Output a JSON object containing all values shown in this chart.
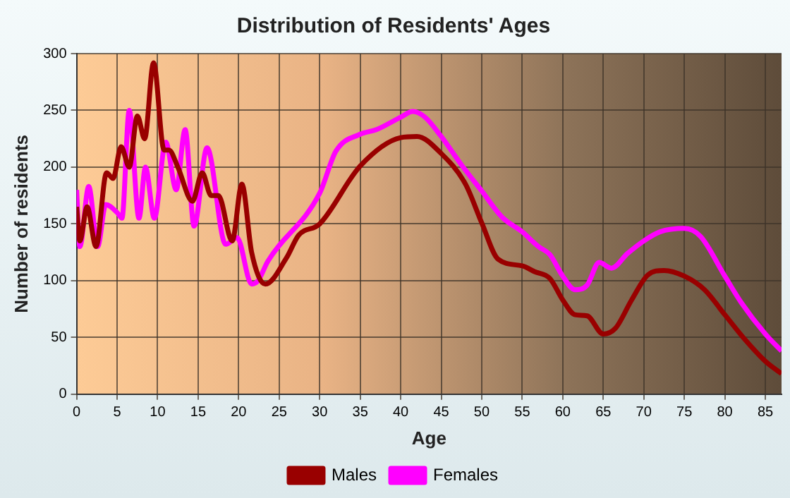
{
  "chart_data": {
    "type": "line",
    "title": "Distribution of Residents' Ages",
    "xlabel": "Age",
    "ylabel": "Number of residents",
    "xlim": [
      0,
      87
    ],
    "xticks": [
      0,
      5,
      10,
      15,
      20,
      25,
      30,
      35,
      40,
      45,
      50,
      55,
      60,
      65,
      70,
      75,
      80,
      85
    ],
    "ylim": [
      0,
      300
    ],
    "yticks": [
      0,
      50,
      100,
      150,
      200,
      250,
      300
    ],
    "grid": true,
    "legend": "bottom",
    "marker": "none",
    "line_style": "solid",
    "series": [
      {
        "name": "Males",
        "color": "#990000",
        "x": [
          0,
          0.4,
          1.3,
          2.4,
          3.7,
          4.5,
          5.5,
          6.5,
          7.5,
          8.4,
          9.5,
          10.8,
          11.4,
          12.5,
          14.3,
          15.5,
          16.6,
          17.5,
          19.2,
          20.4,
          21.6,
          23.3,
          25.9,
          27.4,
          30,
          35,
          40,
          42,
          45,
          48,
          50,
          52,
          55,
          56.5,
          58.4,
          60,
          61.5,
          63,
          65,
          66.5,
          68.5,
          70.5,
          72.5,
          75,
          77.5,
          80,
          82.5,
          85,
          87
        ],
        "values": [
          165,
          135,
          165,
          130,
          195,
          190,
          218,
          200,
          245,
          225,
          292,
          215,
          215,
          200,
          170,
          195,
          175,
          175,
          135,
          185,
          125,
          97,
          120,
          140,
          150,
          201,
          226,
          227,
          212,
          185,
          151,
          119,
          113,
          108,
          102,
          83,
          70,
          69,
          53,
          58,
          83,
          105,
          109,
          104,
          92,
          70,
          48,
          29,
          18
        ]
      },
      {
        "name": "Females",
        "color": "#ff00ff",
        "x": [
          0,
          0.4,
          1.5,
          2.6,
          3.6,
          5,
          5.6,
          6.5,
          7.7,
          8.5,
          9.6,
          11,
          12.3,
          13.4,
          14.5,
          16.1,
          18.4,
          19.8,
          21.6,
          22.4,
          23.6,
          30,
          32,
          35,
          37,
          40,
          41.5,
          43,
          45,
          47.5,
          50,
          52.5,
          55,
          57,
          58.4,
          60,
          61.5,
          63,
          64.5,
          66,
          68,
          70,
          72,
          75,
          77,
          80,
          82,
          85,
          87
        ],
        "values": [
          180,
          130,
          183,
          130,
          167,
          160,
          155,
          250,
          155,
          200,
          155,
          222,
          180,
          233,
          148,
          217,
          132,
          138,
          97,
          100,
          117,
          177,
          214,
          229,
          233,
          244,
          249,
          244,
          227,
          202,
          179,
          156,
          143,
          130,
          123,
          104,
          92,
          96,
          116,
          111,
          124,
          135,
          143,
          146,
          139,
          104,
          81,
          53,
          38
        ]
      }
    ]
  }
}
